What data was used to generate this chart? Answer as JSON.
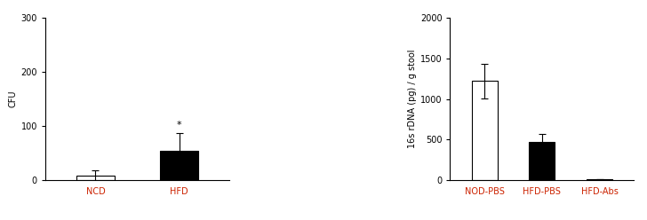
{
  "left": {
    "categories": [
      "NCD",
      "HFD"
    ],
    "values": [
      8,
      55
    ],
    "errors": [
      10,
      33
    ],
    "colors": [
      "white",
      "black"
    ],
    "ylabel": "CFU",
    "ylim": [
      0,
      300
    ],
    "yticks": [
      0,
      100,
      200,
      300
    ],
    "significance": {
      "bar_index": 1,
      "text": "*"
    }
  },
  "right": {
    "categories": [
      "NOD-PBS",
      "HFD-PBS",
      "HFD-Abs"
    ],
    "values": [
      1220,
      470,
      15
    ],
    "errors": [
      210,
      100,
      5
    ],
    "colors": [
      "white",
      "black",
      "black"
    ],
    "ylabel": "16s rDNA (pg) / g stool",
    "ylim": [
      0,
      2000
    ],
    "yticks": [
      0,
      500,
      1000,
      1500,
      2000
    ]
  },
  "background_color": "#ffffff",
  "tick_label_color": "#cc2200",
  "bar_edge_color": "black",
  "bar_width": 0.45,
  "font_size": 7,
  "label_font_size": 7
}
